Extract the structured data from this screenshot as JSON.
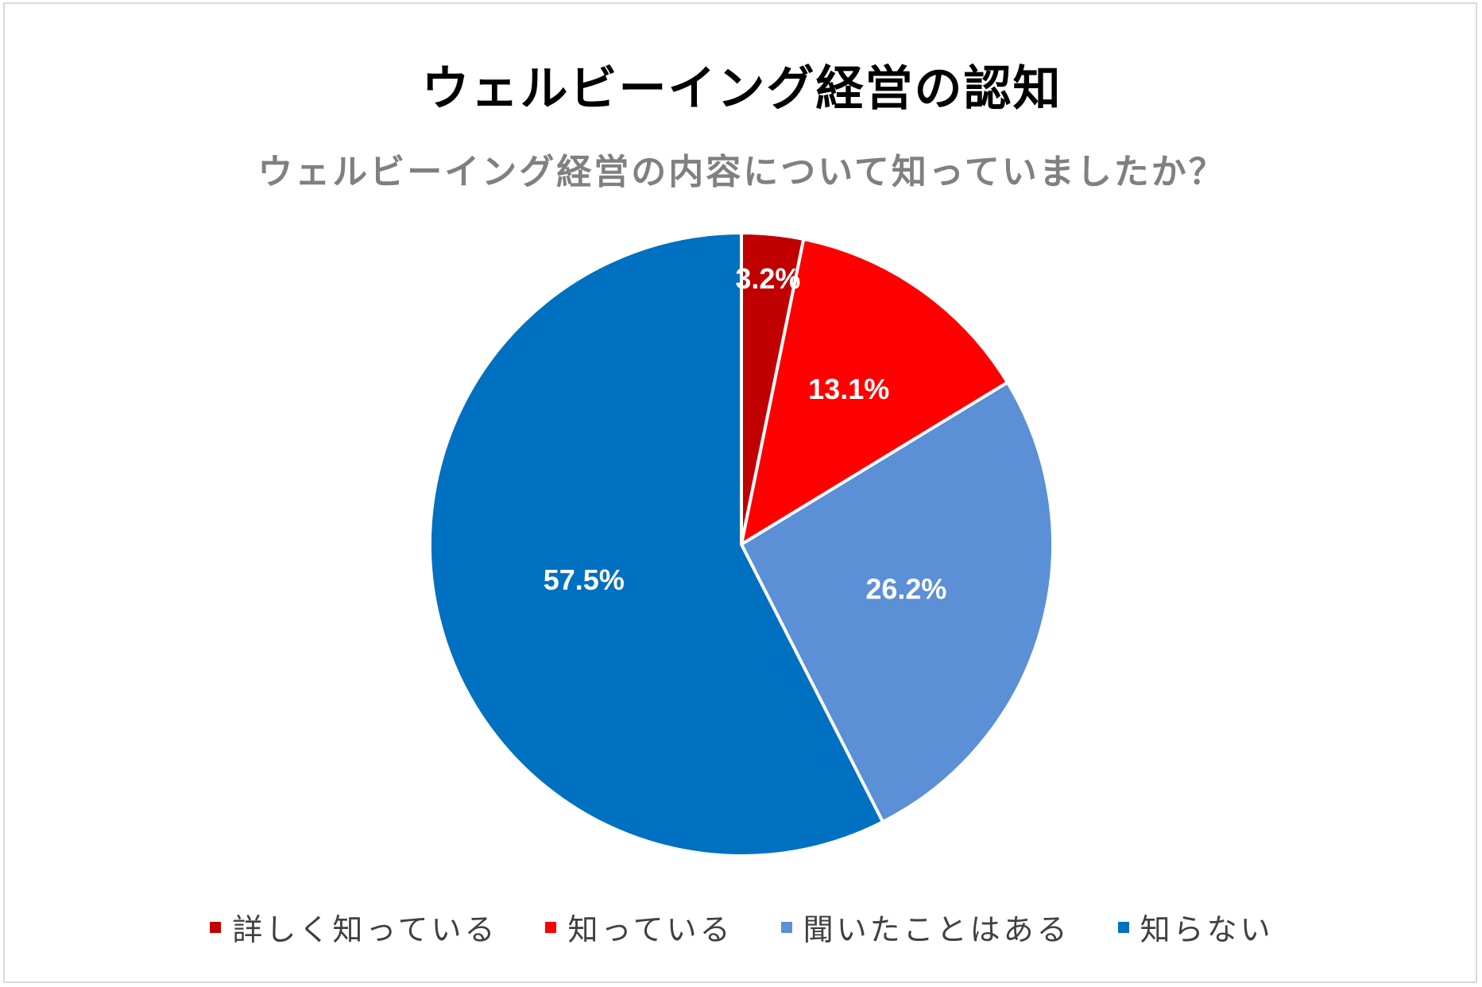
{
  "chart_data": {
    "type": "pie",
    "title": "ウェルビーイング経営の認知",
    "subtitle": "ウェルビーイング経営の内容について知っていましたか？",
    "categories": [
      "詳しく知っている",
      "知っている",
      "聞いたことはある",
      "知らない"
    ],
    "values": [
      3.2,
      13.1,
      26.2,
      57.5
    ],
    "value_labels": [
      "3.2%",
      "13.1%",
      "26.2%",
      "57.5%"
    ],
    "colors": [
      "#c00000",
      "#ff0000",
      "#5b8fd6",
      "#0070c0"
    ],
    "start_angle": "12 o'clock",
    "direction": "clockwise",
    "legend_position": "bottom"
  }
}
